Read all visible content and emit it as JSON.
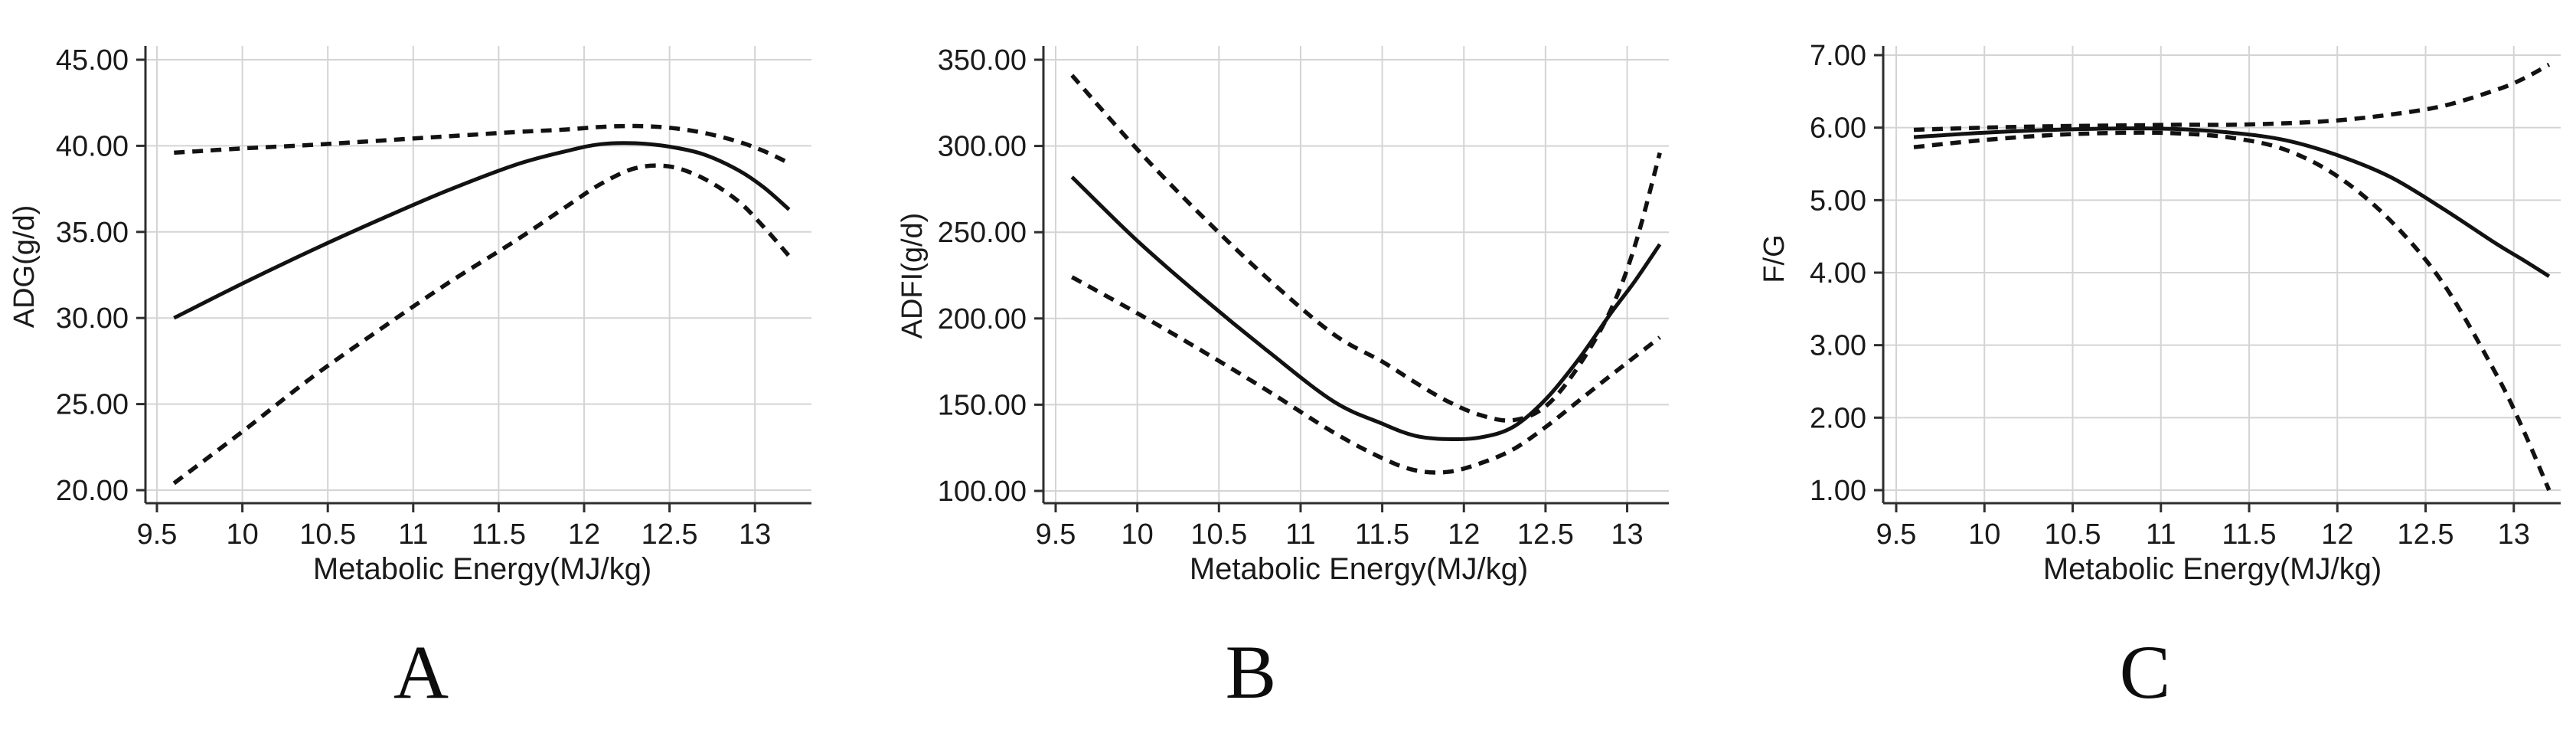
{
  "figure": {
    "background_color": "#ffffff",
    "text_color": "#1a1a1a",
    "grid_color": "#d4d4d4",
    "axis_color": "#2e2e2e",
    "line_color": "#121212"
  },
  "chart_data": [
    {
      "type": "line",
      "panel_label": "A",
      "xlabel": "Metabolic Energy(MJ/kg)",
      "ylabel": "ADG(g/d)",
      "x_ticks": [
        9.5,
        10,
        10.5,
        11,
        11.5,
        12,
        12.5,
        13
      ],
      "x_tick_labels": [
        "9.5",
        "10",
        "10.5",
        "11",
        "11.5",
        "12",
        "12.5",
        "13"
      ],
      "y_ticks": [
        45,
        40,
        35,
        30,
        25,
        20
      ],
      "y_tick_labels": [
        "45.00",
        "40.00",
        "35.00",
        "30.00",
        "25.00",
        "20.00"
      ],
      "xlim": [
        9.43,
        13.28
      ],
      "ylim": [
        20,
        45
      ],
      "grid": true,
      "legend": false,
      "x": [
        9.6,
        10,
        10.4,
        10.8,
        11.2,
        11.6,
        11.9,
        12.1,
        12.3,
        12.5,
        12.7,
        12.9,
        13.05,
        13.2
      ],
      "series": [
        {
          "name": "predicted_mean",
          "style": "solid",
          "values": [
            30.0,
            32.0,
            33.9,
            35.7,
            37.4,
            38.9,
            39.7,
            40.1,
            40.15,
            39.95,
            39.5,
            38.6,
            37.6,
            36.3
          ]
        },
        {
          "name": "upper_confidence_band",
          "style": "dashed",
          "values": [
            39.6,
            39.85,
            40.05,
            40.3,
            40.55,
            40.8,
            40.95,
            41.1,
            41.15,
            41.05,
            40.75,
            40.25,
            39.7,
            39.0
          ]
        },
        {
          "name": "lower_confidence_band",
          "style": "dashed",
          "values": [
            20.4,
            23.4,
            26.5,
            29.3,
            32.0,
            34.5,
            36.5,
            37.8,
            38.7,
            38.8,
            38.1,
            36.8,
            35.3,
            33.6
          ]
        }
      ]
    },
    {
      "type": "line",
      "panel_label": "B",
      "xlabel": "Metabolic Energy(MJ/kg)",
      "ylabel": "ADFI(g/d)",
      "x_ticks": [
        9.5,
        10,
        10.5,
        11,
        11.5,
        12,
        12.5,
        13
      ],
      "x_tick_labels": [
        "9.5",
        "10",
        "10.5",
        "11",
        "11.5",
        "12",
        "12.5",
        "13"
      ],
      "y_ticks": [
        350,
        300,
        250,
        200,
        150,
        100
      ],
      "y_tick_labels": [
        "350.00",
        "300.00",
        "250.00",
        "200.00",
        "150.00",
        "100.00"
      ],
      "xlim": [
        9.43,
        13.28
      ],
      "ylim": [
        100,
        350
      ],
      "grid": true,
      "legend": false,
      "x": [
        9.6,
        10,
        10.4,
        10.8,
        11.2,
        11.5,
        11.7,
        11.9,
        12.1,
        12.3,
        12.5,
        12.7,
        12.9,
        13.05,
        13.2
      ],
      "series": [
        {
          "name": "predicted_mean",
          "style": "solid",
          "values": [
            282,
            245,
            212,
            181,
            152,
            139,
            132,
            130,
            131,
            137,
            153,
            176,
            203,
            222,
            243
          ]
        },
        {
          "name": "upper_confidence_band",
          "style": "dashed",
          "values": [
            341,
            298,
            259,
            223,
            191,
            175,
            163,
            152,
            144,
            141,
            149,
            172,
            205,
            243,
            296
          ]
        },
        {
          "name": "lower_confidence_band",
          "style": "dashed",
          "values": [
            224,
            203,
            181,
            158,
            134,
            119,
            112,
            111,
            116,
            124,
            137,
            152,
            167,
            178,
            189
          ]
        }
      ]
    },
    {
      "type": "line",
      "panel_label": "C",
      "xlabel": "Metabolic Energy(MJ/kg)",
      "ylabel": "F/G",
      "x_ticks": [
        9.5,
        10,
        10.5,
        11,
        11.5,
        12,
        12.5,
        13
      ],
      "x_tick_labels": [
        "9.5",
        "10",
        "10.5",
        "11",
        "11.5",
        "12",
        "12.5",
        "13"
      ],
      "y_ticks": [
        7,
        6,
        5,
        4,
        3,
        2,
        1
      ],
      "y_tick_labels": [
        "7.00",
        "6.00",
        "5.00",
        "4.00",
        "3.00",
        "2.00",
        "1.00"
      ],
      "xlim": [
        9.43,
        13.28
      ],
      "ylim": [
        1,
        7
      ],
      "grid": true,
      "legend": false,
      "x": [
        9.6,
        10,
        10.4,
        10.8,
        11.1,
        11.4,
        11.7,
        12.0,
        12.3,
        12.6,
        12.9,
        13.05,
        13.2
      ],
      "series": [
        {
          "name": "predicted_mean",
          "style": "solid",
          "values": [
            5.87,
            5.93,
            5.97,
            5.99,
            5.98,
            5.93,
            5.83,
            5.62,
            5.32,
            4.88,
            4.4,
            4.18,
            3.95
          ]
        },
        {
          "name": "upper_confidence_band",
          "style": "dashed",
          "values": [
            5.97,
            6.0,
            6.02,
            6.03,
            6.04,
            6.04,
            6.06,
            6.1,
            6.18,
            6.3,
            6.52,
            6.67,
            6.87
          ]
        },
        {
          "name": "lower_confidence_band",
          "style": "dashed",
          "values": [
            5.73,
            5.83,
            5.9,
            5.93,
            5.92,
            5.86,
            5.7,
            5.33,
            4.72,
            3.85,
            2.6,
            1.85,
            1.0
          ]
        }
      ]
    }
  ]
}
